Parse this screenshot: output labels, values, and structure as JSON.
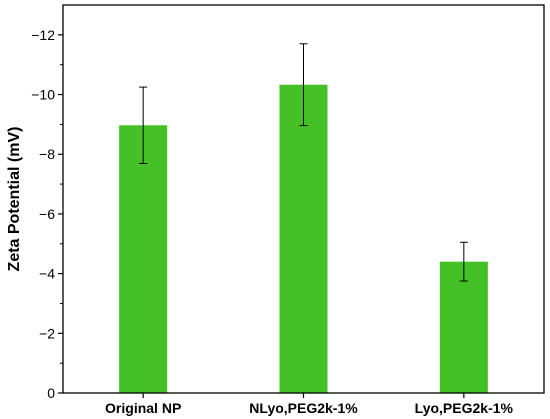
{
  "chart_data": {
    "type": "bar",
    "title": "",
    "xlabel": "",
    "ylabel": "Zeta  Potential (mV)",
    "categories": [
      "Original NP",
      "NLyo,PEG2k-1%",
      "Lyo,PEG2k-1%"
    ],
    "values": [
      -8.97,
      -10.33,
      -4.4
    ],
    "errors": [
      1.28,
      1.37,
      0.65
    ],
    "ylim": [
      0,
      -13
    ],
    "y_ticks": [
      0,
      -2,
      -4,
      -6,
      -8,
      -10,
      -12
    ],
    "y_tick_labels": [
      "0",
      "−2",
      "−4",
      "−6",
      "−8",
      "−10",
      "−12"
    ],
    "y_axis_inverted": true,
    "grid": false,
    "bar_color": "#44c126",
    "error_bar_color": "#000000"
  }
}
